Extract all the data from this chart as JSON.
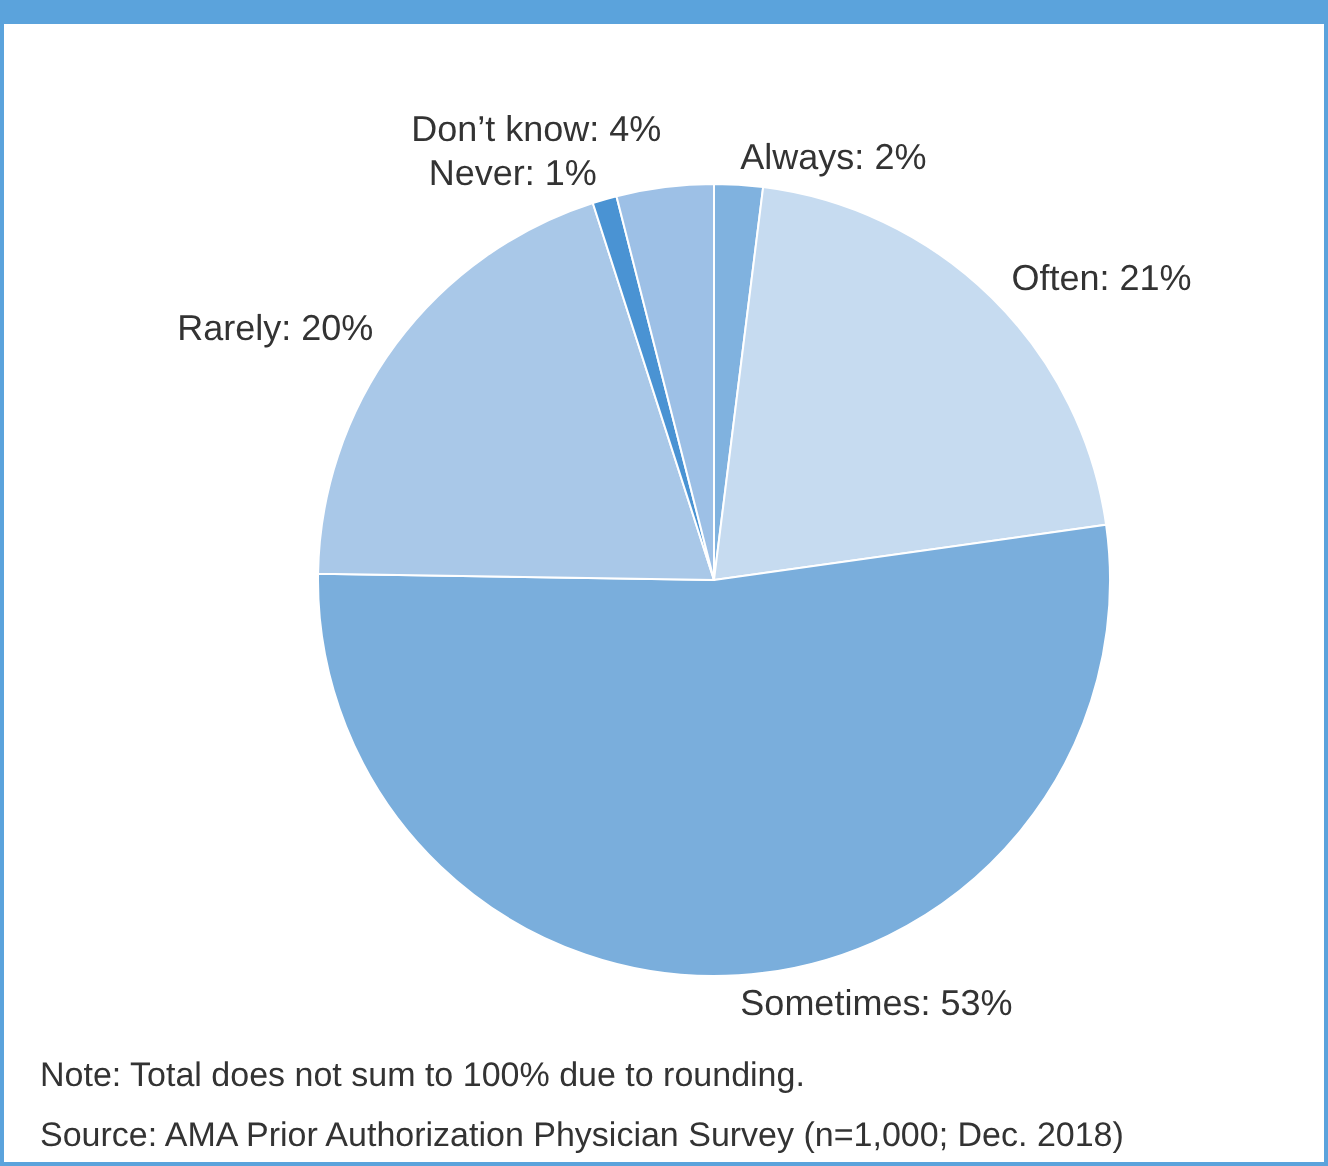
{
  "chart_data": {
    "type": "pie",
    "categories": [
      "Always",
      "Often",
      "Sometimes",
      "Rarely",
      "Never",
      "Don’t know"
    ],
    "values": [
      2,
      21,
      53,
      20,
      1,
      4
    ],
    "value_labels": [
      "2%",
      "21%",
      "53%",
      "20%",
      "1%",
      "4%"
    ],
    "colors": [
      "#80b2df",
      "#c6dbf0",
      "#7aaedc",
      "#a9c8e8",
      "#4a93d3",
      "#9dc0e6"
    ],
    "annotations": [
      "Note: Total does not sum to 100% due to rounding.",
      "Source: AMA Prior Authorization Physician Survey (n=1,000; Dec. 2018)"
    ]
  }
}
